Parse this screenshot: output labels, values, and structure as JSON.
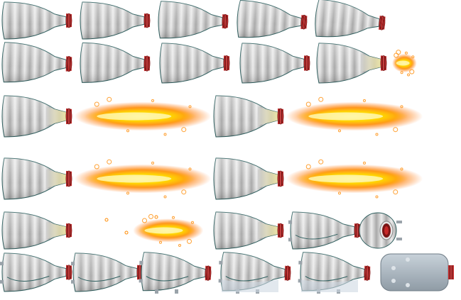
{
  "sheet": {
    "kind": "sprite-sheet",
    "subject": "rocket-thruster",
    "background": "#ffffff"
  },
  "palette": {
    "body_light": "#e9e9e9",
    "body_mid": "#c4c4c4",
    "body_dark": "#a9a9a9",
    "outline": "#2f5f5f",
    "nozzle_ring": "#c62828",
    "nozzle_ring_dark": "#7a1515",
    "heat_glow": "#e8df9a",
    "flame_outer": "#ff8a00",
    "flame_mid": "#ffb000",
    "flame_core": "#ffe84a",
    "metal_plate": "#a7b4bf",
    "metal_plate_edge": "#6f7c86"
  },
  "animation": {
    "frames": [
      {
        "state": "idle",
        "rotation_deg": 0,
        "flame_level": 0
      },
      {
        "state": "idle",
        "rotation_deg": 0,
        "flame_level": 0
      },
      {
        "state": "idle",
        "rotation_deg": 10,
        "flame_level": 0
      },
      {
        "state": "idle",
        "rotation_deg": 20,
        "flame_level": 0
      },
      {
        "state": "idle",
        "rotation_deg": 30,
        "flame_level": 0
      },
      {
        "state": "idle",
        "rotation_deg": 10,
        "flame_level": 0
      },
      {
        "state": "idle",
        "rotation_deg": 5,
        "flame_level": 0
      },
      {
        "state": "idle",
        "rotation_deg": 0,
        "flame_level": 0
      },
      {
        "state": "idle",
        "rotation_deg": 0,
        "flame_level": 0
      },
      {
        "state": "ignite",
        "rotation_deg": 0,
        "flame_level": 0.35
      },
      {
        "state": "burn",
        "rotation_deg": 0,
        "flame_level": 1
      },
      {
        "state": "burn",
        "rotation_deg": 0,
        "flame_level": 1
      },
      {
        "state": "burn",
        "rotation_deg": 0,
        "flame_level": 1
      },
      {
        "state": "burn",
        "rotation_deg": 0,
        "flame_level": 1
      },
      {
        "state": "cutoff",
        "rotation_deg": 0,
        "flame_level": 0.5
      },
      {
        "state": "cooling",
        "rotation_deg": 0,
        "flame_level": 0
      },
      {
        "state": "breakup",
        "rotation_deg": 0,
        "flame_level": 0
      },
      {
        "state": "breakup",
        "rotation_deg": 0,
        "flame_level": 0
      },
      {
        "state": "debris",
        "rotation_deg": 0,
        "flame_level": 0
      },
      {
        "state": "debris",
        "rotation_deg": 0,
        "flame_level": 0
      },
      {
        "state": "debris",
        "rotation_deg": 10,
        "flame_level": 0
      },
      {
        "state": "debris",
        "rotation_deg": 10,
        "flame_level": 0
      },
      {
        "state": "debris",
        "rotation_deg": 10,
        "flame_level": 0
      },
      {
        "state": "debris",
        "rotation_deg": 10,
        "flame_level": 0
      }
    ]
  }
}
